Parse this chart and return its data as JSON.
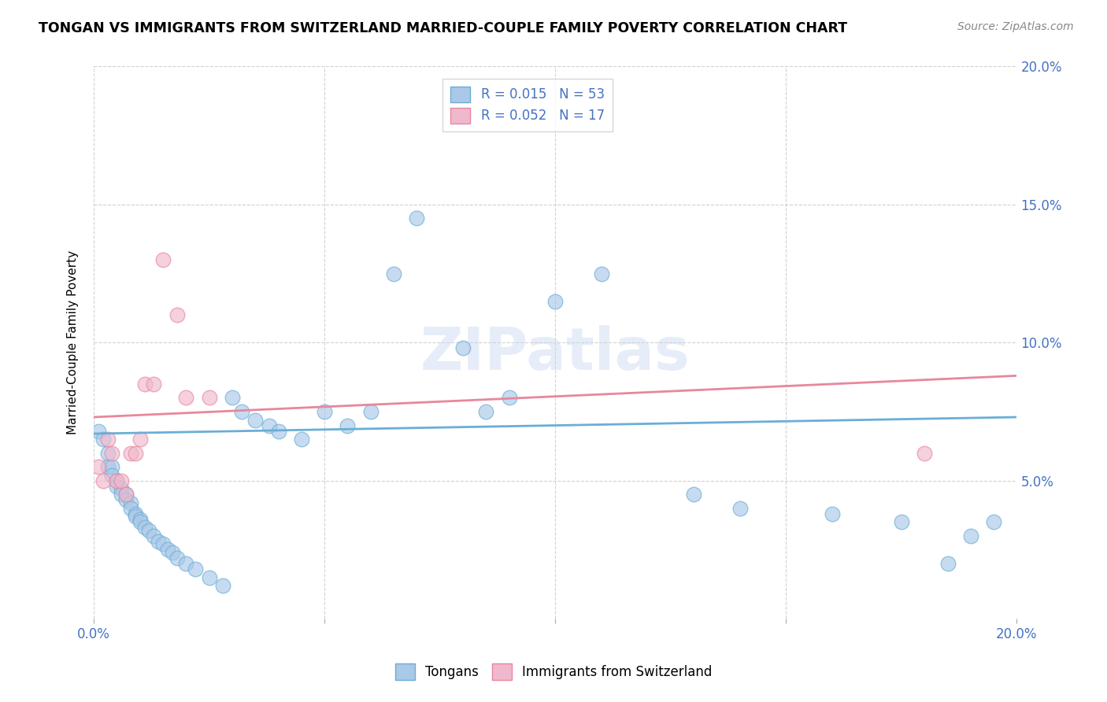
{
  "title": "TONGAN VS IMMIGRANTS FROM SWITZERLAND MARRIED-COUPLE FAMILY POVERTY CORRELATION CHART",
  "source": "Source: ZipAtlas.com",
  "ylabel": "Married-Couple Family Poverty",
  "xlim": [
    0.0,
    0.2
  ],
  "ylim": [
    0.0,
    0.2
  ],
  "xticks": [
    0.0,
    0.05,
    0.1,
    0.15,
    0.2
  ],
  "yticks": [
    0.0,
    0.05,
    0.1,
    0.15,
    0.2
  ],
  "xticklabels": [
    "0.0%",
    "",
    "",
    "",
    "20.0%"
  ],
  "yticklabels": [
    "",
    "5.0%",
    "10.0%",
    "15.0%",
    "20.0%"
  ],
  "blue_color": "#6aaed6",
  "pink_color": "#e8879c",
  "blue_fill": "#aac8e8",
  "pink_fill": "#f0b8cc",
  "watermark": "ZIPatlas",
  "tongans_x": [
    0.001,
    0.002,
    0.003,
    0.003,
    0.004,
    0.004,
    0.005,
    0.005,
    0.006,
    0.006,
    0.007,
    0.007,
    0.008,
    0.008,
    0.009,
    0.009,
    0.01,
    0.01,
    0.011,
    0.012,
    0.013,
    0.014,
    0.015,
    0.016,
    0.017,
    0.018,
    0.02,
    0.022,
    0.025,
    0.028,
    0.03,
    0.032,
    0.035,
    0.038,
    0.04,
    0.045,
    0.05,
    0.055,
    0.06,
    0.065,
    0.07,
    0.08,
    0.085,
    0.09,
    0.1,
    0.11,
    0.13,
    0.14,
    0.16,
    0.175,
    0.185,
    0.19,
    0.195
  ],
  "tongans_y": [
    0.068,
    0.065,
    0.06,
    0.055,
    0.055,
    0.052,
    0.05,
    0.048,
    0.047,
    0.045,
    0.045,
    0.043,
    0.042,
    0.04,
    0.038,
    0.037,
    0.036,
    0.035,
    0.033,
    0.032,
    0.03,
    0.028,
    0.027,
    0.025,
    0.024,
    0.022,
    0.02,
    0.018,
    0.015,
    0.012,
    0.08,
    0.075,
    0.072,
    0.07,
    0.068,
    0.065,
    0.075,
    0.07,
    0.075,
    0.125,
    0.145,
    0.098,
    0.075,
    0.08,
    0.115,
    0.125,
    0.045,
    0.04,
    0.038,
    0.035,
    0.02,
    0.03,
    0.035
  ],
  "swiss_x": [
    0.001,
    0.002,
    0.003,
    0.004,
    0.005,
    0.006,
    0.007,
    0.008,
    0.009,
    0.01,
    0.011,
    0.013,
    0.015,
    0.018,
    0.02,
    0.025,
    0.18
  ],
  "swiss_y": [
    0.055,
    0.05,
    0.065,
    0.06,
    0.05,
    0.05,
    0.045,
    0.06,
    0.06,
    0.065,
    0.085,
    0.085,
    0.13,
    0.11,
    0.08,
    0.08,
    0.06
  ],
  "tongans_trend_x": [
    0.0,
    0.2
  ],
  "tongans_trend_y": [
    0.067,
    0.073
  ],
  "swiss_trend_x": [
    0.0,
    0.2
  ],
  "swiss_trend_y": [
    0.073,
    0.088
  ]
}
